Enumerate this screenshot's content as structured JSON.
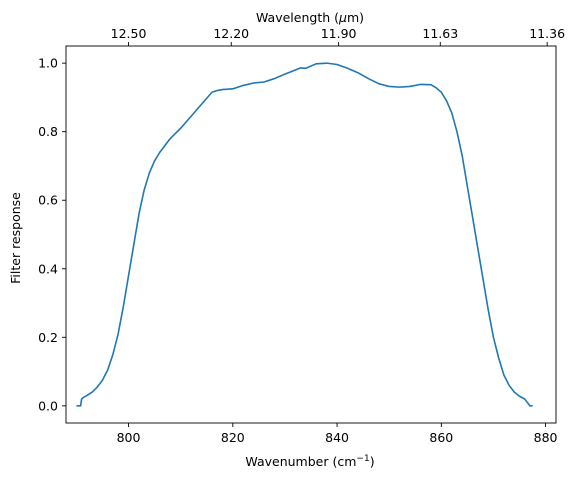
{
  "chart_data": {
    "type": "line",
    "xlabel": "Wavenumber (cm",
    "xlabel_sup": "−1",
    "xlabel_close": ")",
    "ylabel": "Filter response",
    "top_xlabel": "Wavelength (",
    "top_xlabel_mu": "μ",
    "top_xlabel_unit": "m)",
    "xlim": [
      788,
      882
    ],
    "ylim": [
      -0.05,
      1.05
    ],
    "grid": false,
    "legend": "none",
    "line_color": "#1f77b4",
    "x_ticks": [
      {
        "value": 800,
        "label": "800"
      },
      {
        "value": 820,
        "label": "820"
      },
      {
        "value": 840,
        "label": "840"
      },
      {
        "value": 860,
        "label": "860"
      },
      {
        "value": 880,
        "label": "880"
      }
    ],
    "y_ticks": [
      {
        "value": 0.0,
        "label": "0.0"
      },
      {
        "value": 0.2,
        "label": "0.2"
      },
      {
        "value": 0.4,
        "label": "0.4"
      },
      {
        "value": 0.6,
        "label": "0.6"
      },
      {
        "value": 0.8,
        "label": "0.8"
      },
      {
        "value": 1.0,
        "label": "1.0"
      }
    ],
    "top_ticks": [
      {
        "wavenumber": 800.0,
        "label": "12.50"
      },
      {
        "wavenumber": 819.7,
        "label": "12.20"
      },
      {
        "wavenumber": 840.3,
        "label": "11.90"
      },
      {
        "wavenumber": 859.8,
        "label": "11.63"
      },
      {
        "wavenumber": 880.3,
        "label": "11.36"
      }
    ],
    "series": [
      {
        "x": [
          790.0,
          790.8,
          791.0,
          791.4,
          792.0,
          793.0,
          794.0,
          795.0,
          796.0,
          797.0,
          798.0,
          799.0,
          800.0,
          801.0,
          802.0,
          803.0,
          804.0,
          805.0,
          806.0,
          807.0,
          808.0,
          810.0,
          812.0,
          814.0,
          816.0,
          817.0,
          818.0,
          820.0,
          822.0,
          824.0,
          826.0,
          828.0,
          830.0,
          832.0,
          833.0,
          834.0,
          836.0,
          838.0,
          840.0,
          842.0,
          844.0,
          846.0,
          848.0,
          850.0,
          852.0,
          854.0,
          856.0,
          858.0,
          859.0,
          860.0,
          861.0,
          862.0,
          863.0,
          864.0,
          865.0,
          866.0,
          867.0,
          868.0,
          869.0,
          870.0,
          871.0,
          872.0,
          873.0,
          874.0,
          875.0,
          876.0,
          876.5,
          877.0,
          877.5
        ],
        "y": [
          0.0,
          0.0,
          0.02,
          0.025,
          0.03,
          0.04,
          0.055,
          0.075,
          0.105,
          0.15,
          0.21,
          0.29,
          0.38,
          0.47,
          0.56,
          0.63,
          0.68,
          0.715,
          0.74,
          0.76,
          0.78,
          0.81,
          0.845,
          0.88,
          0.915,
          0.92,
          0.923,
          0.925,
          0.935,
          0.942,
          0.945,
          0.955,
          0.968,
          0.98,
          0.986,
          0.985,
          0.998,
          1.0,
          0.996,
          0.985,
          0.972,
          0.955,
          0.94,
          0.932,
          0.93,
          0.932,
          0.938,
          0.937,
          0.928,
          0.915,
          0.89,
          0.855,
          0.8,
          0.73,
          0.64,
          0.55,
          0.46,
          0.37,
          0.28,
          0.2,
          0.14,
          0.09,
          0.06,
          0.04,
          0.028,
          0.02,
          0.01,
          0.0,
          0.0
        ]
      }
    ]
  }
}
